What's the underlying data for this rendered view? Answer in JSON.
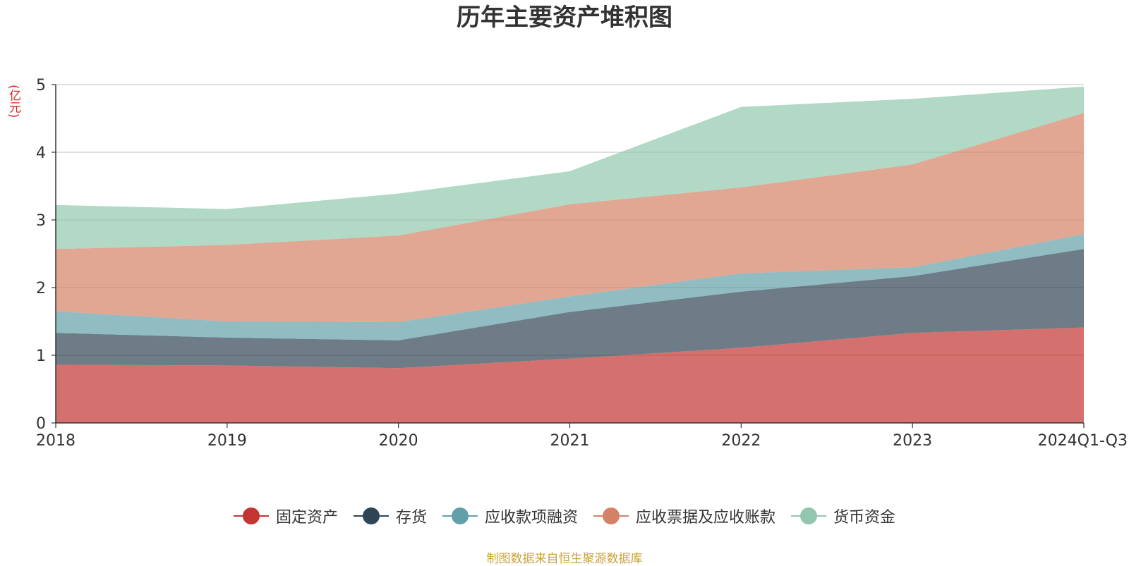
{
  "chart_data": {
    "type": "area",
    "stacked": true,
    "title": "历年主要资产堆积图",
    "unit_label": "(亿元)",
    "categories": [
      "2018",
      "2019",
      "2020",
      "2021",
      "2022",
      "2023",
      "2024Q1-Q3"
    ],
    "ylim": [
      0,
      5
    ],
    "yticks": [
      "0",
      "1",
      "2",
      "3",
      "4",
      "5"
    ],
    "grid": true,
    "legend_position": "bottom",
    "series": [
      {
        "name": "固定资产",
        "color": "#c23531",
        "values": [
          0.86,
          0.85,
          0.81,
          0.95,
          1.11,
          1.33,
          1.41
        ]
      },
      {
        "name": "存货",
        "color": "#2f4554",
        "values": [
          0.47,
          0.41,
          0.41,
          0.69,
          0.83,
          0.84,
          1.16
        ]
      },
      {
        "name": "应收款项融资",
        "color": "#61a0a8",
        "values": [
          0.32,
          0.24,
          0.27,
          0.23,
          0.27,
          0.13,
          0.22
        ]
      },
      {
        "name": "应收票据及应收账款",
        "color": "#d48265",
        "values": [
          0.92,
          1.13,
          1.28,
          1.36,
          1.27,
          1.52,
          1.79
        ]
      },
      {
        "name": "货币资金",
        "color": "#91c7ae",
        "values": [
          0.65,
          0.53,
          0.62,
          0.49,
          1.19,
          0.97,
          0.39
        ]
      }
    ]
  },
  "source_note": "制图数据来自恒生聚源数据库"
}
